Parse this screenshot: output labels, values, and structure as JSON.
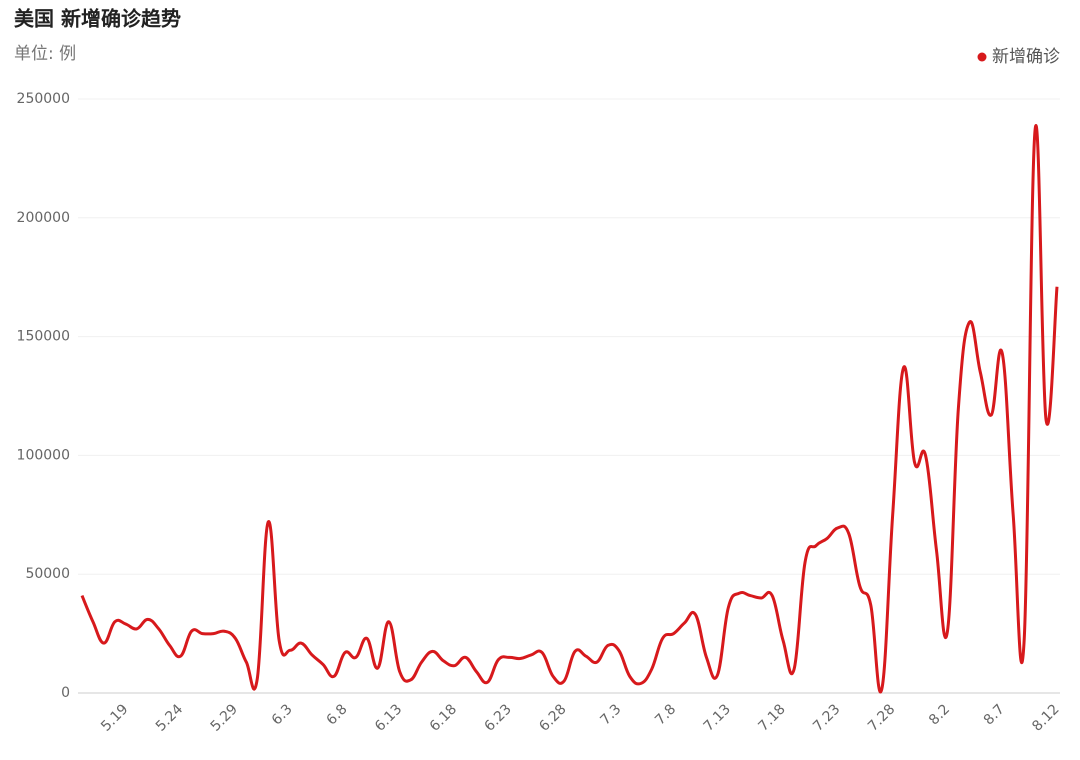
{
  "chart_data": {
    "type": "line",
    "title": "美国 新增确诊趋势",
    "subtitle": "单位: 例",
    "categories": [
      null,
      null,
      null,
      null,
      "5.19",
      null,
      null,
      null,
      null,
      "5.24",
      null,
      null,
      null,
      null,
      "5.29",
      null,
      null,
      null,
      null,
      "6.3",
      null,
      null,
      null,
      null,
      "6.8",
      null,
      null,
      null,
      null,
      "6.13",
      null,
      null,
      null,
      null,
      "6.18",
      null,
      null,
      null,
      null,
      "6.23",
      null,
      null,
      null,
      null,
      "6.28",
      null,
      null,
      null,
      null,
      "7.3",
      null,
      null,
      null,
      null,
      "7.8",
      null,
      null,
      null,
      null,
      "7.13",
      null,
      null,
      null,
      null,
      "7.18",
      null,
      null,
      null,
      null,
      "7.23",
      null,
      null,
      null,
      null,
      "7.28",
      null,
      null,
      null,
      null,
      "8.2",
      null,
      null,
      null,
      null,
      "8.7",
      null,
      null,
      null,
      null,
      "8.12"
    ],
    "series": [
      {
        "name": "新增确诊",
        "color": "#d7191c",
        "values": [
          41000,
          30000,
          21000,
          30000,
          29000,
          27000,
          31000,
          27000,
          20000,
          15500,
          26000,
          25000,
          25000,
          26000,
          23000,
          13000,
          6000,
          72000,
          22000,
          18000,
          21000,
          16000,
          12000,
          7000,
          17000,
          15000,
          23000,
          10500,
          30000,
          9000,
          5500,
          13000,
          17500,
          13500,
          11500,
          15000,
          9000,
          4500,
          14000,
          15000,
          14500,
          16000,
          17000,
          7000,
          5000,
          17500,
          15500,
          13000,
          20000,
          18000,
          7000,
          4000,
          10000,
          23000,
          25000,
          29500,
          33000,
          15000,
          7500,
          36000,
          42000,
          41000,
          40000,
          41000,
          22000,
          10000,
          55000,
          62000,
          65000,
          69500,
          67000,
          45000,
          37000,
          1500,
          75000,
          137000,
          97000,
          100000,
          60000,
          26000,
          120000,
          156000,
          135000,
          117000,
          143000,
          75000,
          22000,
          237000,
          115000,
          171000
        ]
      }
    ],
    "ylim": [
      0,
      250000
    ],
    "yticks": [
      0,
      50000,
      100000,
      150000,
      200000,
      250000
    ],
    "grid": true,
    "legend": "top-right"
  }
}
